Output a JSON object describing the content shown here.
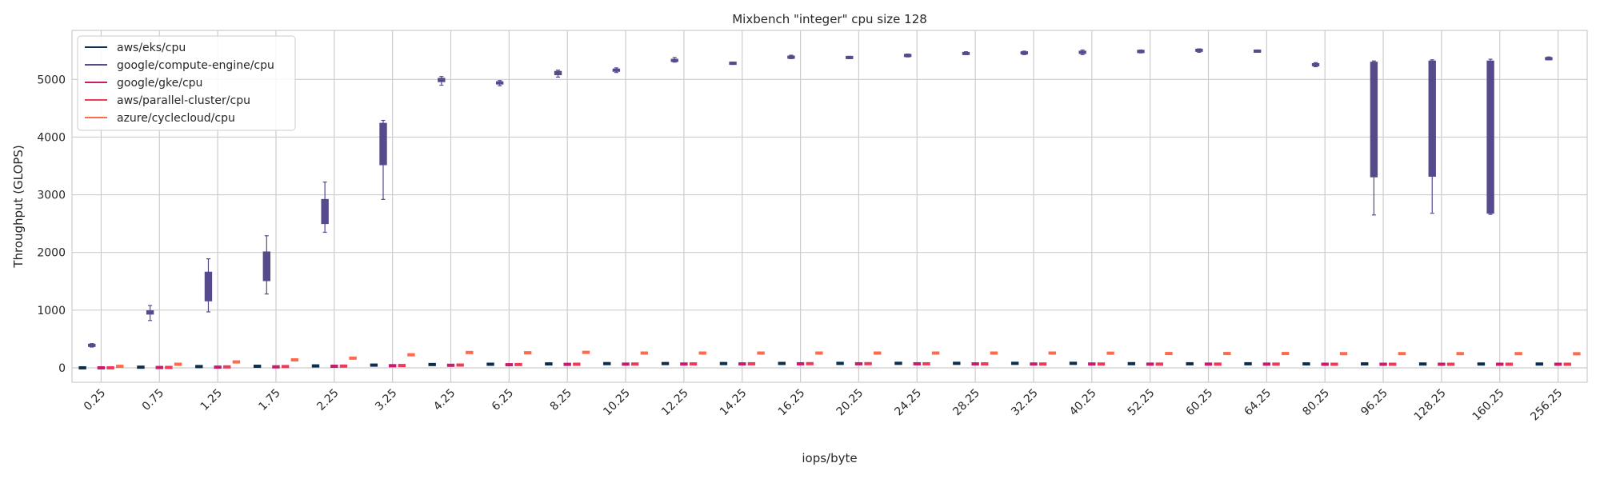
{
  "chart_data": {
    "type": "box",
    "title": "Mixbench \"integer\" cpu size 128",
    "xlabel": "iops/byte",
    "ylabel": "Throughput (GLOPS)",
    "ylim": [
      -250,
      5850
    ],
    "yticks": [
      0,
      1000,
      2000,
      3000,
      4000,
      5000
    ],
    "grid": true,
    "legend_position": "upper-left",
    "categories": [
      "0.25",
      "0.75",
      "1.25",
      "1.75",
      "2.25",
      "3.25",
      "4.25",
      "6.25",
      "8.25",
      "10.25",
      "12.25",
      "14.25",
      "16.25",
      "20.25",
      "24.25",
      "28.25",
      "32.25",
      "40.25",
      "52.25",
      "60.25",
      "64.25",
      "80.25",
      "96.25",
      "128.25",
      "160.25",
      "256.25"
    ],
    "series": [
      {
        "name": "aws/eks/cpu",
        "color": "#0d2f4f",
        "box_values": [
          [
            0,
            0,
            0,
            0,
            0
          ],
          [
            10,
            10,
            11,
            12,
            12
          ],
          [
            20,
            21,
            22,
            23,
            24
          ],
          [
            25,
            26,
            27,
            28,
            30
          ],
          [
            30,
            32,
            33,
            34,
            36
          ],
          [
            45,
            46,
            47,
            48,
            50
          ],
          [
            55,
            56,
            57,
            58,
            60
          ],
          [
            60,
            61,
            62,
            63,
            65
          ],
          [
            65,
            67,
            68,
            69,
            70
          ],
          [
            70,
            72,
            73,
            74,
            75
          ],
          [
            72,
            73,
            74,
            75,
            76
          ],
          [
            72,
            73,
            74,
            75,
            76
          ],
          [
            74,
            75,
            76,
            77,
            78
          ],
          [
            75,
            76,
            77,
            78,
            79
          ],
          [
            76,
            77,
            78,
            79,
            80
          ],
          [
            76,
            77,
            78,
            79,
            80
          ],
          [
            76,
            77,
            78,
            79,
            80
          ],
          [
            76,
            77,
            78,
            79,
            80
          ],
          [
            70,
            71,
            72,
            73,
            74
          ],
          [
            68,
            69,
            70,
            71,
            72
          ],
          [
            68,
            69,
            70,
            71,
            72
          ],
          [
            66,
            67,
            68,
            69,
            70
          ],
          [
            66,
            67,
            68,
            69,
            70
          ],
          [
            64,
            65,
            66,
            67,
            68
          ],
          [
            64,
            65,
            66,
            67,
            68
          ],
          [
            64,
            65,
            66,
            67,
            68
          ]
        ]
      },
      {
        "name": "google/compute-engine/cpu",
        "color": "#574a8c",
        "box_values": [
          [
            360,
            375,
            390,
            405,
            420
          ],
          [
            820,
            930,
            960,
            990,
            1080
          ],
          [
            970,
            1160,
            1410,
            1660,
            1890
          ],
          [
            1280,
            1510,
            1820,
            2010,
            2290
          ],
          [
            2350,
            2500,
            2720,
            2920,
            3220
          ],
          [
            2920,
            3520,
            3880,
            4240,
            4290
          ],
          [
            4900,
            4960,
            4990,
            5020,
            5050
          ],
          [
            4890,
            4920,
            4940,
            4960,
            4980
          ],
          [
            5040,
            5080,
            5110,
            5140,
            5160
          ],
          [
            5120,
            5140,
            5160,
            5180,
            5200
          ],
          [
            5300,
            5310,
            5330,
            5350,
            5380
          ],
          [
            5260,
            5270,
            5280,
            5290,
            5300
          ],
          [
            5360,
            5370,
            5390,
            5400,
            5420
          ],
          [
            5360,
            5370,
            5380,
            5390,
            5400
          ],
          [
            5390,
            5400,
            5420,
            5430,
            5440
          ],
          [
            5430,
            5440,
            5450,
            5460,
            5480
          ],
          [
            5430,
            5450,
            5460,
            5470,
            5490
          ],
          [
            5430,
            5450,
            5470,
            5490,
            5510
          ],
          [
            5460,
            5470,
            5490,
            5500,
            5510
          ],
          [
            5470,
            5490,
            5500,
            5520,
            5530
          ],
          [
            5470,
            5480,
            5490,
            5500,
            5510
          ],
          [
            5220,
            5240,
            5260,
            5270,
            5290
          ],
          [
            2650,
            3310,
            5080,
            5300,
            5320
          ],
          [
            2680,
            3320,
            5100,
            5320,
            5340
          ],
          [
            2660,
            2680,
            4900,
            5320,
            5350
          ],
          [
            5340,
            5350,
            5360,
            5370,
            5390
          ]
        ]
      },
      {
        "name": "google/gke/cpu",
        "color": "#c61d6c",
        "box_values": [
          [
            0,
            0,
            0,
            0,
            0
          ],
          [
            5,
            5,
            6,
            6,
            7
          ],
          [
            10,
            11,
            12,
            13,
            14
          ],
          [
            15,
            16,
            17,
            18,
            19
          ],
          [
            25,
            26,
            27,
            28,
            29
          ],
          [
            35,
            36,
            37,
            38,
            39
          ],
          [
            42,
            43,
            44,
            45,
            46
          ],
          [
            52,
            53,
            54,
            55,
            56
          ],
          [
            58,
            59,
            60,
            61,
            62
          ],
          [
            62,
            63,
            64,
            65,
            66
          ],
          [
            64,
            65,
            66,
            67,
            68
          ],
          [
            66,
            67,
            68,
            69,
            70
          ],
          [
            68,
            69,
            70,
            71,
            72
          ],
          [
            68,
            69,
            70,
            71,
            72
          ],
          [
            68,
            69,
            70,
            71,
            72
          ],
          [
            66,
            67,
            68,
            69,
            70
          ],
          [
            64,
            65,
            66,
            67,
            68
          ],
          [
            64,
            65,
            66,
            67,
            68
          ],
          [
            62,
            63,
            64,
            65,
            66
          ],
          [
            62,
            63,
            64,
            65,
            66
          ],
          [
            62,
            63,
            64,
            65,
            66
          ],
          [
            60,
            61,
            62,
            63,
            64
          ],
          [
            60,
            61,
            62,
            63,
            64
          ],
          [
            60,
            61,
            62,
            63,
            64
          ],
          [
            60,
            61,
            62,
            63,
            64
          ],
          [
            60,
            61,
            62,
            63,
            64
          ]
        ]
      },
      {
        "name": "aws/parallel-cluster/cpu",
        "color": "#ef3b5a",
        "box_values": [
          [
            0,
            0,
            0,
            0,
            0
          ],
          [
            6,
            6,
            7,
            7,
            8
          ],
          [
            14,
            15,
            16,
            17,
            18
          ],
          [
            20,
            21,
            22,
            23,
            24
          ],
          [
            28,
            29,
            30,
            31,
            32
          ],
          [
            38,
            39,
            40,
            41,
            42
          ],
          [
            46,
            47,
            48,
            49,
            50
          ],
          [
            55,
            56,
            57,
            58,
            59
          ],
          [
            60,
            61,
            62,
            63,
            64
          ],
          [
            64,
            65,
            66,
            67,
            68
          ],
          [
            66,
            67,
            68,
            69,
            70
          ],
          [
            68,
            69,
            70,
            71,
            72
          ],
          [
            70,
            71,
            72,
            73,
            74
          ],
          [
            70,
            71,
            72,
            73,
            74
          ],
          [
            68,
            69,
            70,
            71,
            72
          ],
          [
            66,
            67,
            68,
            69,
            70
          ],
          [
            64,
            65,
            66,
            67,
            68
          ],
          [
            64,
            65,
            66,
            67,
            68
          ],
          [
            62,
            63,
            64,
            65,
            66
          ],
          [
            62,
            63,
            64,
            65,
            66
          ],
          [
            62,
            63,
            64,
            65,
            66
          ],
          [
            60,
            61,
            62,
            63,
            64
          ],
          [
            60,
            61,
            62,
            63,
            64
          ],
          [
            60,
            61,
            62,
            63,
            64
          ],
          [
            60,
            61,
            62,
            63,
            64
          ],
          [
            60,
            61,
            62,
            63,
            64
          ]
        ]
      },
      {
        "name": "azure/cyclecloud/cpu",
        "color": "#ff6a4d",
        "box_values": [
          [
            22,
            24,
            26,
            28,
            30
          ],
          [
            55,
            58,
            62,
            66,
            70
          ],
          [
            95,
            98,
            102,
            106,
            110
          ],
          [
            130,
            134,
            138,
            142,
            146
          ],
          [
            160,
            164,
            168,
            172,
            176
          ],
          [
            210,
            218,
            226,
            234,
            242
          ],
          [
            255,
            260,
            265,
            270,
            275
          ],
          [
            255,
            258,
            261,
            264,
            267
          ],
          [
            262,
            265,
            268,
            271,
            274
          ],
          [
            250,
            253,
            256,
            259,
            262
          ],
          [
            250,
            253,
            256,
            259,
            262
          ],
          [
            250,
            253,
            256,
            259,
            262
          ],
          [
            250,
            253,
            256,
            259,
            262
          ],
          [
            250,
            253,
            256,
            259,
            262
          ],
          [
            250,
            253,
            256,
            259,
            262
          ],
          [
            250,
            253,
            256,
            259,
            262
          ],
          [
            250,
            253,
            256,
            259,
            262
          ],
          [
            248,
            251,
            254,
            257,
            260
          ],
          [
            242,
            245,
            248,
            251,
            254
          ],
          [
            242,
            245,
            248,
            251,
            254
          ],
          [
            242,
            245,
            248,
            251,
            254
          ],
          [
            240,
            243,
            246,
            249,
            252
          ],
          [
            240,
            243,
            246,
            249,
            252
          ],
          [
            240,
            243,
            246,
            249,
            252
          ],
          [
            240,
            243,
            246,
            249,
            252
          ],
          [
            238,
            241,
            244,
            247,
            250
          ]
        ]
      }
    ]
  }
}
